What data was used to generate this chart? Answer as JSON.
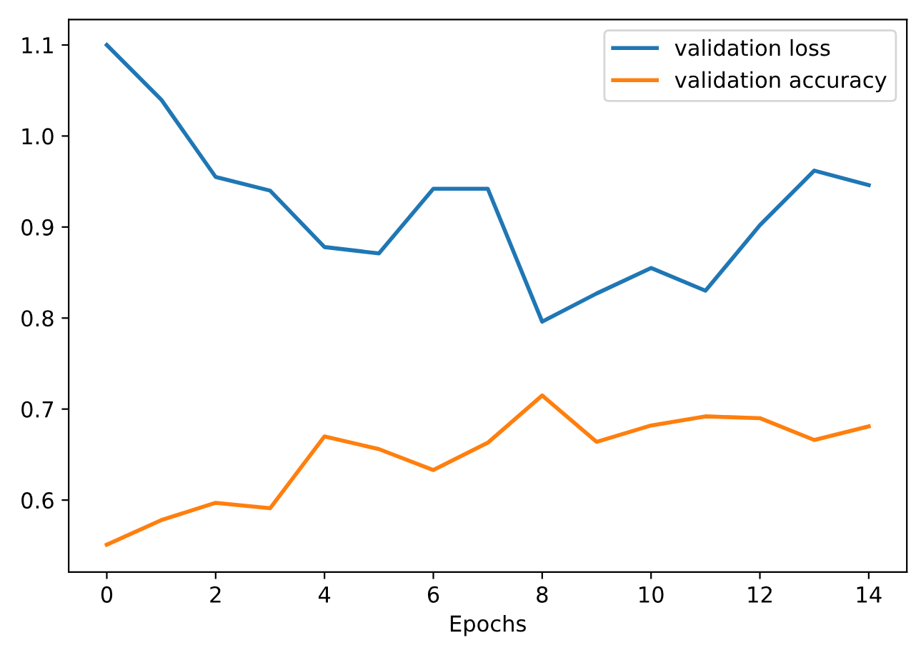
{
  "chart_data": {
    "type": "line",
    "xlabel": "Epochs",
    "x": [
      0,
      1,
      2,
      3,
      4,
      5,
      6,
      7,
      8,
      9,
      10,
      11,
      12,
      13,
      14
    ],
    "series": [
      {
        "name": "validation loss",
        "color": "#1f77b4",
        "values": [
          1.1,
          1.04,
          0.955,
          0.94,
          0.878,
          0.871,
          0.942,
          0.942,
          0.796,
          0.827,
          0.855,
          0.83,
          0.902,
          0.962,
          0.946
        ]
      },
      {
        "name": "validation accuracy",
        "color": "#ff7f0e",
        "values": [
          0.551,
          0.578,
          0.597,
          0.591,
          0.67,
          0.656,
          0.633,
          0.663,
          0.715,
          0.664,
          0.682,
          0.692,
          0.69,
          0.666,
          0.681
        ]
      }
    ],
    "xlim": [
      -0.7,
      14.7
    ],
    "ylim": [
      0.521,
      1.128
    ],
    "xticks": [
      0,
      2,
      4,
      6,
      8,
      10,
      12,
      14
    ],
    "yticks": [
      0.6,
      0.7,
      0.8,
      0.9,
      {
        "value": 1.0,
        "label": "1.0"
      },
      1.1
    ],
    "legend": "top right",
    "grid": false
  }
}
